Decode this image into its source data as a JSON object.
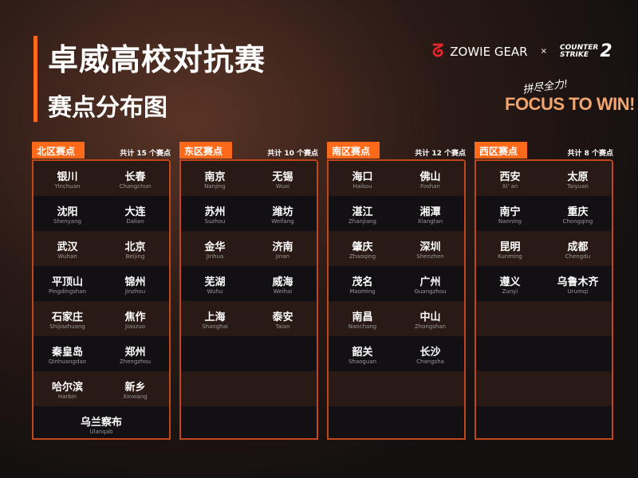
{
  "title": "卓威高校对抗赛",
  "subtitle": "赛点分布图",
  "brand": {
    "zowie": "ZOWIE GEAR",
    "x": "×",
    "cs_line1": "COUNTER",
    "cs_line2": "STRIKE",
    "cs_num": "2"
  },
  "slogan": {
    "cn": "拼尽全力!",
    "en": "FOCUS TO WIN!"
  },
  "accent": "#ff6a1a",
  "regions": [
    {
      "name": "北区赛点",
      "count": "共计 15 个赛点",
      "rows": [
        [
          {
            "zh": "银川",
            "py": "Yinchuan"
          },
          {
            "zh": "长春",
            "py": "Changchun"
          }
        ],
        [
          {
            "zh": "沈阳",
            "py": "Shenyang"
          },
          {
            "zh": "大连",
            "py": "Dalian"
          }
        ],
        [
          {
            "zh": "武汉",
            "py": "Wuhan"
          },
          {
            "zh": "北京",
            "py": "Beijing"
          }
        ],
        [
          {
            "zh": "平顶山",
            "py": "Pingdingshan"
          },
          {
            "zh": "锦州",
            "py": "Jinzhou"
          }
        ],
        [
          {
            "zh": "石家庄",
            "py": "Shijiazhuang"
          },
          {
            "zh": "焦作",
            "py": "Jiaozuo"
          }
        ],
        [
          {
            "zh": "秦皇岛",
            "py": "Qinhuangdao"
          },
          {
            "zh": "郑州",
            "py": "Zhengzhou"
          }
        ],
        [
          {
            "zh": "哈尔滨",
            "py": "Harbin"
          },
          {
            "zh": "新乡",
            "py": "Xinxiang"
          }
        ],
        [
          {
            "zh": "乌兰察布",
            "py": "Ulanqab"
          }
        ]
      ]
    },
    {
      "name": "东区赛点",
      "count": "共计 10 个赛点",
      "rows": [
        [
          {
            "zh": "南京",
            "py": "Nanjing"
          },
          {
            "zh": "无锡",
            "py": "Wuxi"
          }
        ],
        [
          {
            "zh": "苏州",
            "py": "Suzhou"
          },
          {
            "zh": "潍坊",
            "py": "Weifang"
          }
        ],
        [
          {
            "zh": "金华",
            "py": "Jinhua"
          },
          {
            "zh": "济南",
            "py": "Jinan"
          }
        ],
        [
          {
            "zh": "芜湖",
            "py": "Wuhu"
          },
          {
            "zh": "威海",
            "py": "Weihai"
          }
        ],
        [
          {
            "zh": "上海",
            "py": "Shanghai"
          },
          {
            "zh": "泰安",
            "py": "Taian"
          }
        ]
      ]
    },
    {
      "name": "南区赛点",
      "count": "共计 12 个赛点",
      "rows": [
        [
          {
            "zh": "海口",
            "py": "Haikou"
          },
          {
            "zh": "佛山",
            "py": "Foshan"
          }
        ],
        [
          {
            "zh": "湛江",
            "py": "Zhanjiang"
          },
          {
            "zh": "湘潭",
            "py": "Xiangtan"
          }
        ],
        [
          {
            "zh": "肇庆",
            "py": "Zhaoqing"
          },
          {
            "zh": "深圳",
            "py": "Shenzhen"
          }
        ],
        [
          {
            "zh": "茂名",
            "py": "Maoming"
          },
          {
            "zh": "广州",
            "py": "Guangzhou"
          }
        ],
        [
          {
            "zh": "南昌",
            "py": "Nanchang"
          },
          {
            "zh": "中山",
            "py": "Zhongshan"
          }
        ],
        [
          {
            "zh": "韶关",
            "py": "Shaoguan"
          },
          {
            "zh": "长沙",
            "py": "Changsha"
          }
        ]
      ]
    },
    {
      "name": "西区赛点",
      "count": "共计 8 个赛点",
      "rows": [
        [
          {
            "zh": "西安",
            "py": "Xi' an"
          },
          {
            "zh": "太原",
            "py": "Taiyuan"
          }
        ],
        [
          {
            "zh": "南宁",
            "py": "Nanning"
          },
          {
            "zh": "重庆",
            "py": "Chongqing"
          }
        ],
        [
          {
            "zh": "昆明",
            "py": "Kunming"
          },
          {
            "zh": "成都",
            "py": "Chengdu"
          }
        ],
        [
          {
            "zh": "遵义",
            "py": "Zunyi"
          },
          {
            "zh": "乌鲁木齐",
            "py": "Urumqi"
          }
        ]
      ]
    }
  ]
}
